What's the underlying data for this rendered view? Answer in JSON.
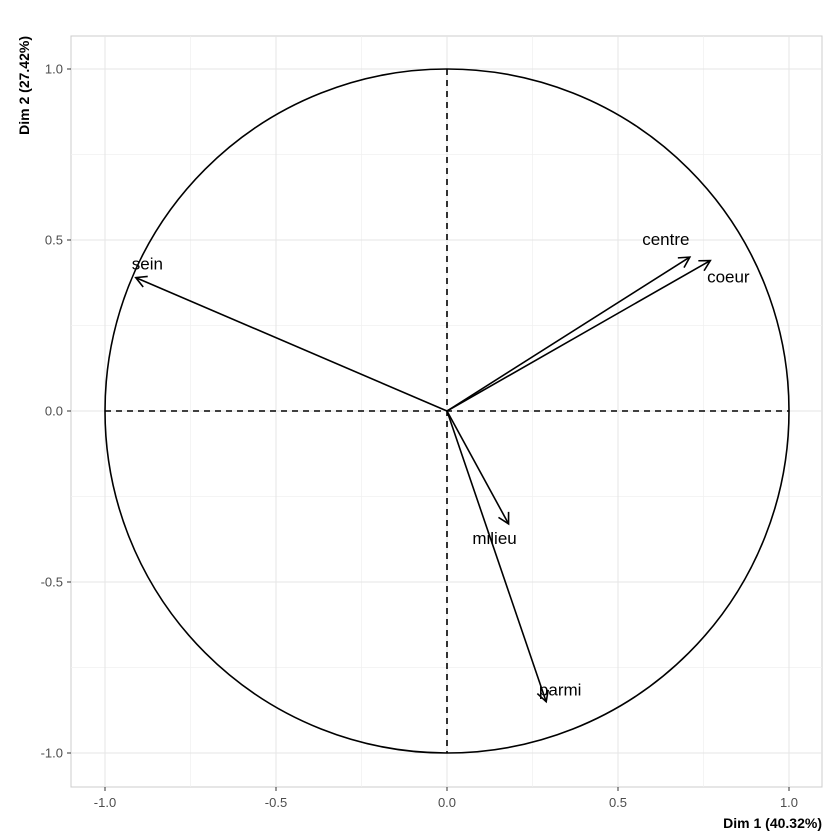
{
  "chart_data": {
    "type": "scatter",
    "subtype": "pca-variables-correlation-circle",
    "title": "",
    "xlabel": "Dim 1 (40.32%)",
    "ylabel": "Dim 2 (27.42%)",
    "xlim": [
      -1.1,
      1.1
    ],
    "ylim": [
      -1.1,
      1.1
    ],
    "x_ticks": [
      -1.0,
      -0.5,
      0.0,
      0.5,
      1.0
    ],
    "y_ticks": [
      -1.0,
      -0.5,
      0.0,
      0.5,
      1.0
    ],
    "x_tick_labels": [
      "-1.0",
      "-0.5",
      "0.0",
      "0.5",
      "1.0"
    ],
    "y_tick_labels": [
      "-1.0",
      "-0.5",
      "0.0",
      "0.5",
      "1.0"
    ],
    "grid": true,
    "unit_circle": true,
    "reference_lines": "dashed at x=0 and y=0",
    "colors": {
      "arrow": "#000000",
      "grid": "#e5e5e5",
      "panel_border": "#cccccc",
      "tick_text": "#4d4d4d"
    },
    "variables": [
      {
        "name": "sein",
        "x": -0.91,
        "y": 0.39
      },
      {
        "name": "centre",
        "x": 0.71,
        "y": 0.45
      },
      {
        "name": "coeur",
        "x": 0.77,
        "y": 0.44
      },
      {
        "name": "milieu",
        "x": 0.18,
        "y": -0.33
      },
      {
        "name": "parmi",
        "x": 0.29,
        "y": -0.85
      }
    ]
  }
}
